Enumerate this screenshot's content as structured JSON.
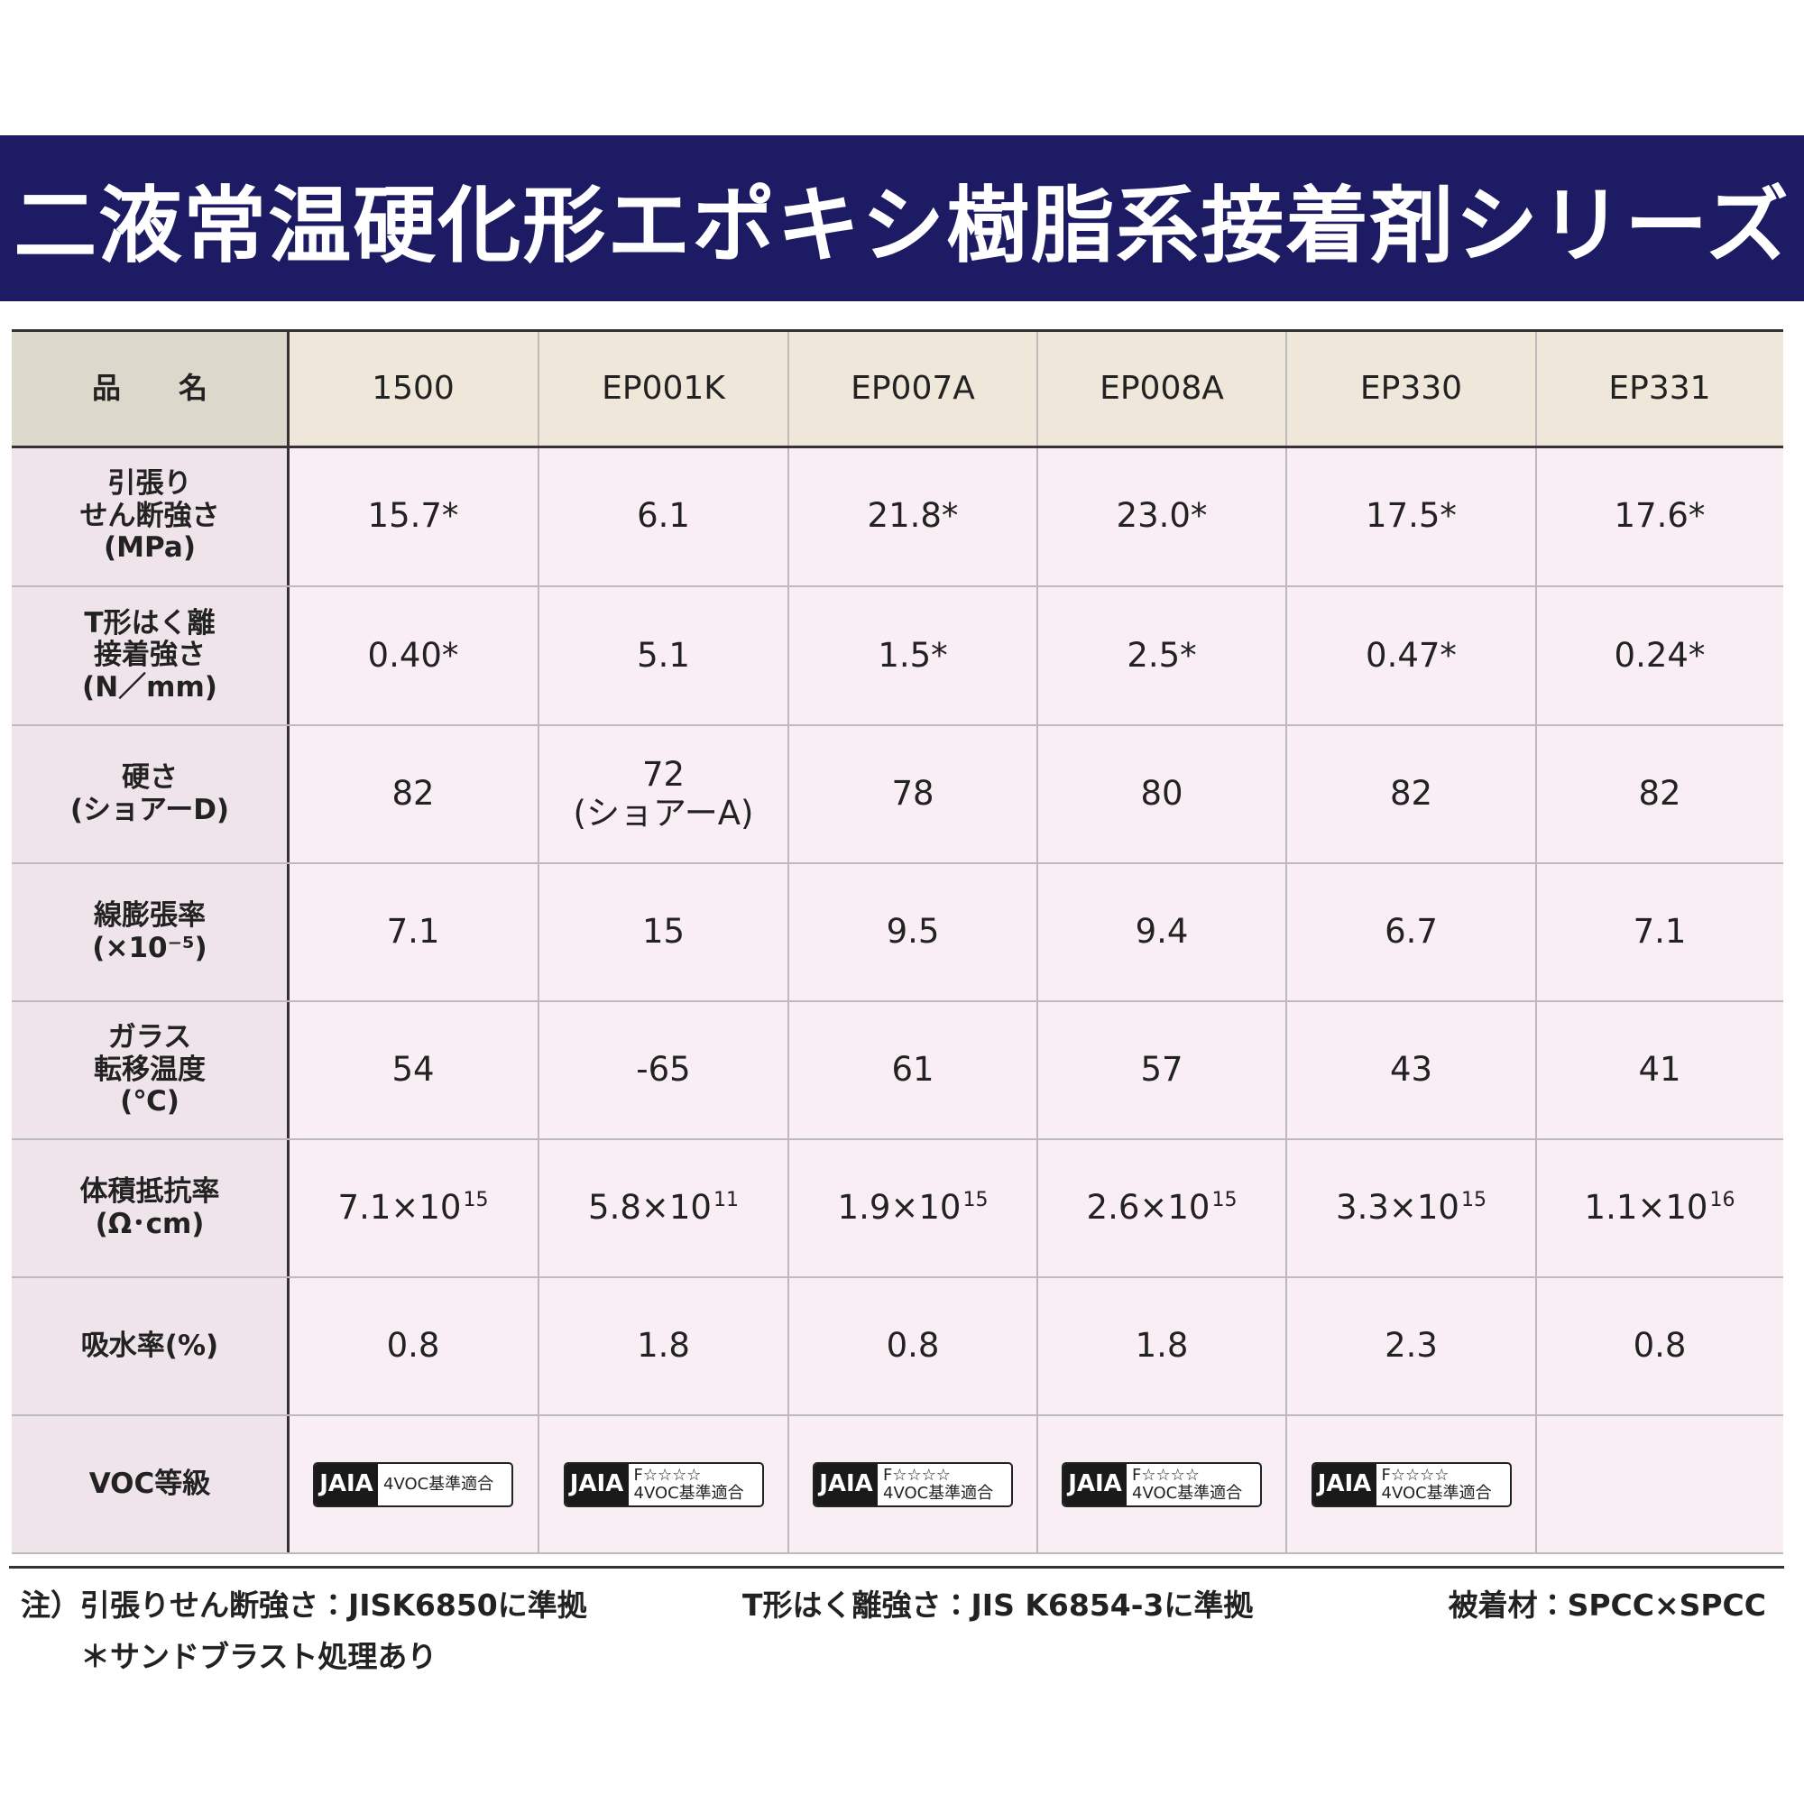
{
  "header": {
    "title": "二液常温硬化形エポキシ樹脂系接着剤シリーズ"
  },
  "table": {
    "header": [
      "品　　名",
      "1500",
      "EP001K",
      "EP007A",
      "EP008A",
      "EP330",
      "EP331"
    ],
    "rows": [
      {
        "label": [
          "引張り",
          "せん断強さ",
          "(MPa)"
        ],
        "cells": [
          [
            "15.7*"
          ],
          [
            "6.1"
          ],
          [
            "21.8*"
          ],
          [
            "23.0*"
          ],
          [
            "17.5*"
          ],
          [
            "17.6*"
          ]
        ]
      },
      {
        "label": [
          "T形はく離",
          "接着強さ",
          "(N／mm)"
        ],
        "cells": [
          [
            "0.40*"
          ],
          [
            "5.1"
          ],
          [
            "1.5*"
          ],
          [
            "2.5*"
          ],
          [
            "0.47*"
          ],
          [
            "0.24*"
          ]
        ]
      },
      {
        "label": [
          "硬さ",
          "(ショアーD)"
        ],
        "cells": [
          [
            "82"
          ],
          [
            "72",
            "(ショアーA)"
          ],
          [
            "78"
          ],
          [
            "80"
          ],
          [
            "82"
          ],
          [
            "82"
          ]
        ]
      },
      {
        "label": [
          "線膨張率",
          "(×10⁻⁵)"
        ],
        "cells": [
          [
            "7.1"
          ],
          [
            "15"
          ],
          [
            "9.5"
          ],
          [
            "9.4"
          ],
          [
            "6.7"
          ],
          [
            "7.1"
          ]
        ]
      },
      {
        "label": [
          "ガラス",
          "転移温度",
          "(℃)"
        ],
        "cells": [
          [
            "54"
          ],
          [
            "-65"
          ],
          [
            "61"
          ],
          [
            "57"
          ],
          [
            "43"
          ],
          [
            "41"
          ]
        ]
      },
      {
        "label": [
          "体積抵抗率",
          "(Ω･cm)"
        ],
        "cells": [
          [
            {
              "base": "7.1×10",
              "exp": "15"
            }
          ],
          [
            {
              "base": "5.8×10",
              "exp": "11"
            }
          ],
          [
            {
              "base": "1.9×10",
              "exp": "15"
            }
          ],
          [
            {
              "base": "2.6×10",
              "exp": "15"
            }
          ],
          [
            {
              "base": "3.3×10",
              "exp": "15"
            }
          ],
          [
            {
              "base": "1.1×10",
              "exp": "16"
            }
          ]
        ]
      },
      {
        "label": [
          "吸水率(%)"
        ],
        "cells": [
          [
            "0.8"
          ],
          [
            "1.8"
          ],
          [
            "0.8"
          ],
          [
            "1.8"
          ],
          [
            "2.3"
          ],
          [
            "0.8"
          ]
        ]
      },
      {
        "label": [
          "VOC等級"
        ],
        "cells": [
          {
            "badge": "JAIA",
            "text": "4VOC基準適合"
          },
          {
            "badge": "JAIA",
            "grade": "F☆☆☆☆",
            "text": "4VOC基準適合"
          },
          {
            "badge": "JAIA",
            "grade": "F☆☆☆☆",
            "text": "4VOC基準適合"
          },
          {
            "badge": "JAIA",
            "grade": "F☆☆☆☆",
            "text": "4VOC基準適合"
          },
          {
            "badge": "JAIA",
            "grade": "F☆☆☆☆",
            "text": "4VOC基準適合"
          },
          null
        ]
      }
    ]
  },
  "notes": [
    "注）引張りせん断強さ：JISK6850に準拠",
    "T形はく離強さ：JIS K6854-3に準拠",
    "被着材：SPCC×SPCC",
    "＊サンドブラスト処理あり"
  ]
}
